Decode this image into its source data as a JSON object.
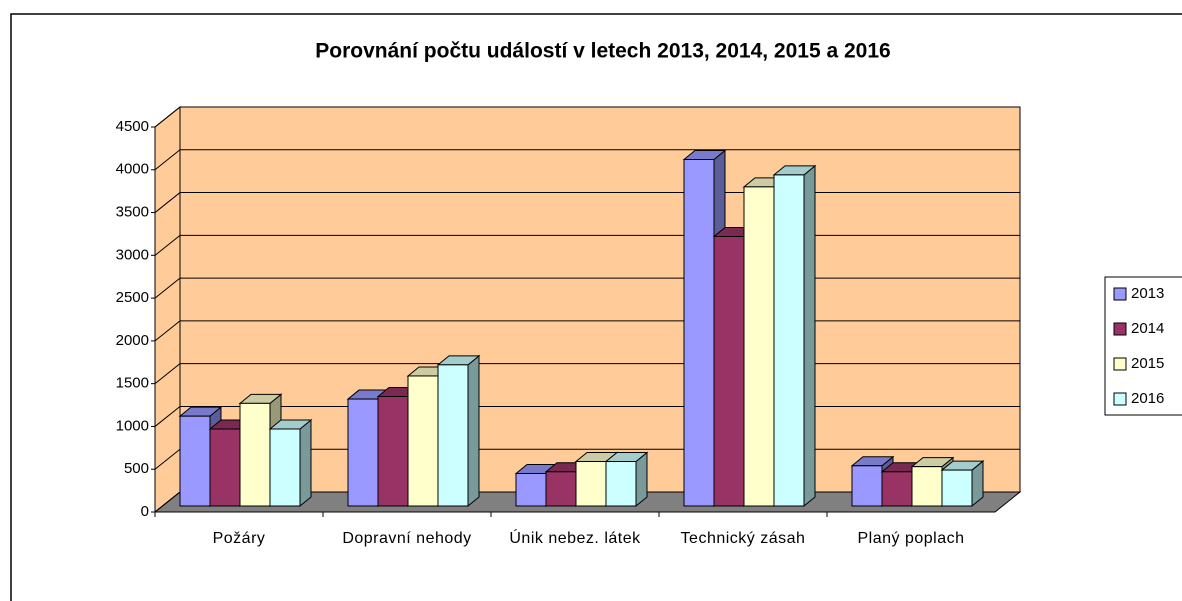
{
  "chart_data": {
    "type": "bar",
    "title": "Porovnání počtu událostí v letech 2013,  2014,  2015 a 2016",
    "categories": [
      "Požáry",
      "Dopravní nehody",
      "Únik nebez. látek",
      "Technický zásah",
      "Planý poplach"
    ],
    "series": [
      {
        "name": "2013",
        "color": "#9999ff",
        "values": [
          1050,
          1250,
          380,
          4050,
          470
        ]
      },
      {
        "name": "2014",
        "color": "#993366",
        "values": [
          900,
          1280,
          400,
          3150,
          400
        ]
      },
      {
        "name": "2015",
        "color": "#ffffcc",
        "values": [
          1200,
          1520,
          520,
          3730,
          460
        ]
      },
      {
        "name": "2016",
        "color": "#ccffff",
        "values": [
          900,
          1650,
          520,
          3870,
          420
        ]
      }
    ],
    "ylim": [
      0,
      4500
    ],
    "yticks": [
      0,
      500,
      1000,
      1500,
      2000,
      2500,
      3000,
      3500,
      4000,
      4500
    ],
    "grid": true,
    "legend": "right",
    "wall_color": "#ffcc99",
    "floor_color": "#808080"
  }
}
